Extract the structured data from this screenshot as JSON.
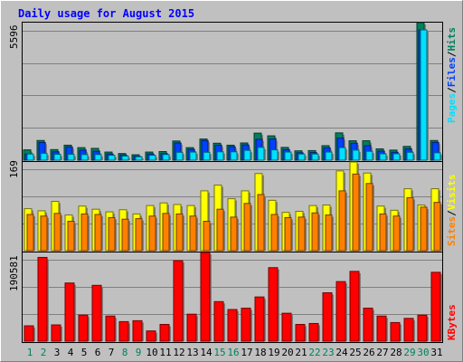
{
  "colors": {
    "background": "#C0C0C0",
    "hits": "#00805C",
    "files": "#0040FF",
    "pages": "#00E0FF",
    "visits": "#FFFF00",
    "sites": "#FF8000",
    "kbytes": "#FF0000",
    "weekday": "#000000",
    "weekend": "#00805C",
    "title": "#0000FF"
  },
  "chart_data": {
    "type": "bar",
    "title": "Daily usage for August 2015",
    "categories": [
      "1",
      "2",
      "3",
      "4",
      "5",
      "6",
      "7",
      "8",
      "9",
      "10",
      "11",
      "12",
      "13",
      "14",
      "15",
      "16",
      "17",
      "18",
      "19",
      "20",
      "21",
      "22",
      "23",
      "24",
      "25",
      "26",
      "27",
      "28",
      "29",
      "30",
      "31"
    ],
    "weekend_days": [
      "1",
      "2",
      "8",
      "9",
      "15",
      "16",
      "22",
      "23",
      "29",
      "30"
    ],
    "panels": [
      {
        "id": "hits",
        "ymax_label": "5596",
        "ylim": [
          0,
          5596
        ],
        "legend": [
          "Pages",
          "Files",
          "Hits"
        ],
        "series": [
          {
            "name": "Hits",
            "values": [
              420,
              800,
              430,
              610,
              510,
              480,
              330,
              270,
              220,
              330,
              350,
              780,
              510,
              860,
              690,
              610,
              700,
              1100,
              990,
              520,
              380,
              390,
              590,
              1110,
              790,
              790,
              460,
              410,
              560,
              5596,
              800
            ]
          },
          {
            "name": "Files",
            "values": [
              250,
              720,
              340,
              540,
              410,
              360,
              250,
              210,
              160,
              250,
              270,
              700,
              440,
              800,
              610,
              550,
              620,
              850,
              860,
              430,
              300,
              310,
              500,
              900,
              690,
              590,
              370,
              320,
              460,
              5300,
              720
            ]
          },
          {
            "name": "Pages",
            "values": [
              250,
              280,
              240,
              240,
              230,
              230,
              200,
              170,
              140,
              200,
              230,
              320,
              330,
              320,
              340,
              340,
              400,
              520,
              420,
              330,
              250,
              250,
              330,
              510,
              410,
              360,
              260,
              260,
              320,
              5300,
              300
            ]
          }
        ]
      },
      {
        "id": "visits",
        "ymax_label": "169",
        "ylim": [
          0,
          169
        ],
        "legend": [
          "Sites",
          "Visits"
        ],
        "series": [
          {
            "name": "Visits",
            "values": [
              80,
              76,
              94,
              68,
              85,
              79,
              74,
              78,
              70,
              86,
              91,
              88,
              86,
              114,
              125,
              99,
              114,
              147,
              96,
              73,
              75,
              86,
              87,
              152,
              169,
              148,
              85,
              77,
              118,
              87,
              118
            ]
          },
          {
            "name": "Sites",
            "values": [
              69,
              66,
              71,
              56,
              70,
              69,
              63,
              60,
              61,
              66,
              71,
              70,
              66,
              56,
              79,
              64,
              90,
              107,
              69,
              63,
              64,
              72,
              68,
              114,
              146,
              128,
              70,
              66,
              101,
              83,
              92
            ]
          }
        ]
      },
      {
        "id": "kbytes",
        "ymax_label": "190581",
        "ylim": [
          0,
          190581
        ],
        "legend": [
          "KBytes"
        ],
        "series": [
          {
            "name": "KBytes",
            "values": [
              33000,
              180000,
              35000,
              125000,
              56000,
              120000,
              54000,
              42000,
              44000,
              22000,
              36000,
              173000,
              58000,
              190581,
              85000,
              68000,
              71000,
              95000,
              158000,
              60000,
              36000,
              38000,
              104000,
              128000,
              150000,
              71000,
              54000,
              40000,
              49000,
              56000,
              148000
            ]
          }
        ]
      }
    ]
  }
}
